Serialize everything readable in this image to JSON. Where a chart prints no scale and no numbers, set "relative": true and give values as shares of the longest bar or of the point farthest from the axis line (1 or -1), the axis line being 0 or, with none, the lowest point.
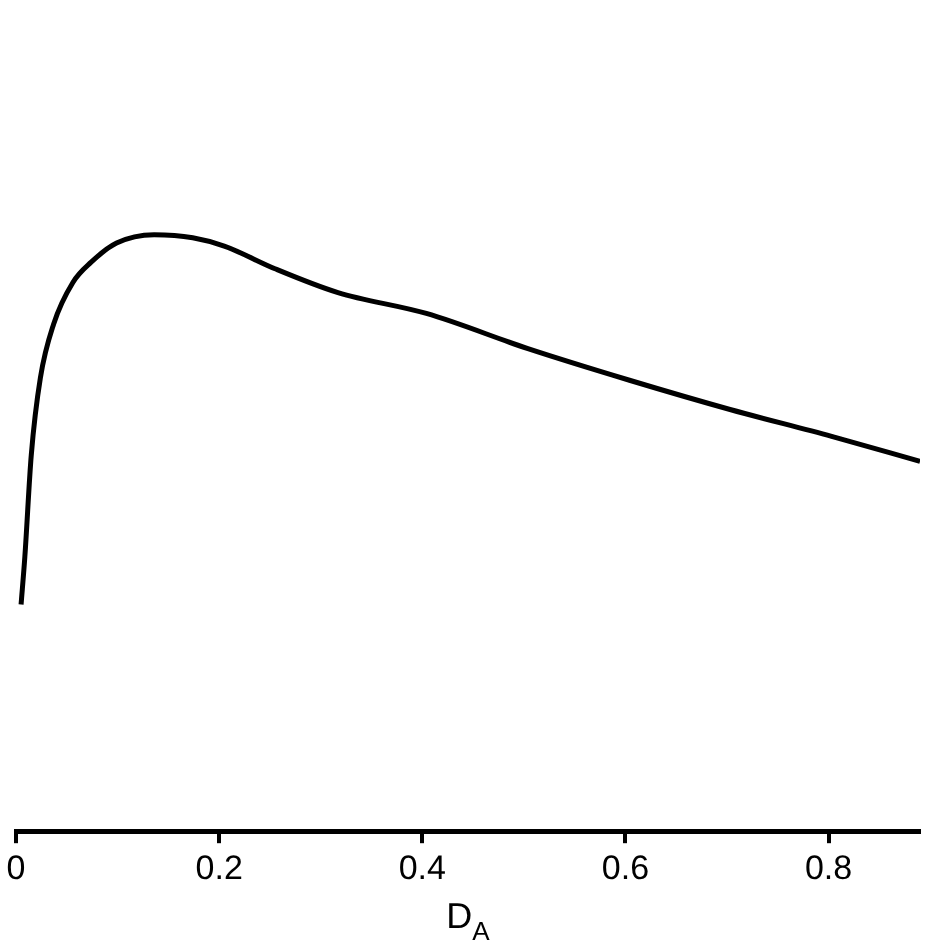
{
  "chart_data": {
    "type": "line",
    "xlabel": "D$_{A}$",
    "relative": true,
    "xlim": [
      0,
      0.89
    ],
    "xticks": [
      0,
      0.2,
      0.4,
      0.6,
      0.8
    ],
    "grid": false,
    "legend": false,
    "marker": "none",
    "line_style": "solid",
    "x": [
      0.005,
      0.0087,
      0.015,
      0.024,
      0.037,
      0.056,
      0.074,
      0.099,
      0.136,
      0.174,
      0.205,
      0.255,
      0.317,
      0.404,
      0.504,
      0.604,
      0.703,
      0.803,
      0.89
    ],
    "series": [
      {
        "color": "#000000",
        "values": [
          0.38,
          0.46,
          0.63,
          0.76,
          0.85,
          0.92,
          0.954,
          0.986,
          1.0,
          0.995,
          0.981,
          0.943,
          0.903,
          0.868,
          0.809,
          0.756,
          0.707,
          0.662,
          0.62
        ]
      }
    ]
  }
}
